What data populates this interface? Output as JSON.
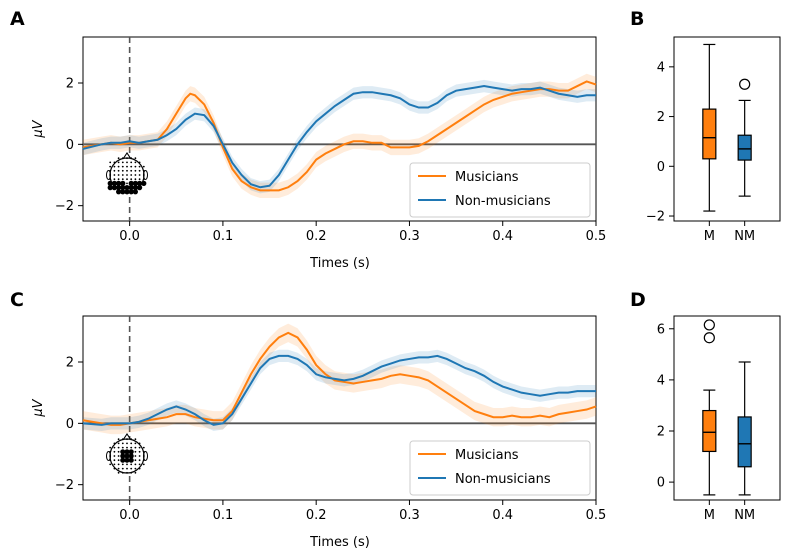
{
  "colors": {
    "musicians": "#ff7f0e",
    "non_musicians": "#1f77b4",
    "zero_line": "#555555",
    "onset_line": "#555555"
  },
  "chart_data": [
    {
      "panel": "A",
      "type": "line",
      "xlabel": "Times (s)",
      "ylabel": "μV",
      "xlim": [
        -0.05,
        0.5
      ],
      "ylim": [
        -2.5,
        3.5
      ],
      "xticks": [
        "0.0",
        "0.1",
        "0.2",
        "0.3",
        "0.4",
        "0.5"
      ],
      "yticks": [
        "−2",
        "0",
        "2"
      ],
      "legend": "bottom-right",
      "onset_marker": 0.0,
      "series": [
        {
          "name": "Musicians",
          "color": "#ff7f0e",
          "band": 0.25,
          "x": [
            -0.05,
            -0.03,
            -0.02,
            -0.01,
            0.0,
            0.01,
            0.02,
            0.03,
            0.04,
            0.05,
            0.06,
            0.065,
            0.07,
            0.08,
            0.09,
            0.1,
            0.11,
            0.12,
            0.13,
            0.14,
            0.15,
            0.16,
            0.17,
            0.18,
            0.19,
            0.2,
            0.21,
            0.22,
            0.23,
            0.24,
            0.25,
            0.26,
            0.27,
            0.28,
            0.29,
            0.3,
            0.31,
            0.32,
            0.33,
            0.34,
            0.35,
            0.36,
            0.37,
            0.38,
            0.39,
            0.4,
            0.41,
            0.42,
            0.43,
            0.44,
            0.45,
            0.46,
            0.47,
            0.48,
            0.49,
            0.5
          ],
          "y": [
            -0.1,
            0.0,
            0.05,
            0.0,
            0.05,
            0.05,
            0.1,
            0.15,
            0.5,
            1.0,
            1.5,
            1.65,
            1.6,
            1.3,
            0.7,
            -0.1,
            -0.8,
            -1.2,
            -1.4,
            -1.5,
            -1.5,
            -1.5,
            -1.4,
            -1.2,
            -0.9,
            -0.5,
            -0.3,
            -0.15,
            0.0,
            0.1,
            0.1,
            0.05,
            0.05,
            -0.1,
            -0.1,
            -0.1,
            -0.05,
            0.1,
            0.3,
            0.5,
            0.7,
            0.9,
            1.1,
            1.3,
            1.45,
            1.55,
            1.65,
            1.7,
            1.75,
            1.8,
            1.8,
            1.75,
            1.75,
            1.9,
            2.05,
            1.95
          ]
        },
        {
          "name": "Non-musicians",
          "color": "#1f77b4",
          "band": 0.2,
          "x": [
            -0.05,
            -0.03,
            -0.02,
            -0.01,
            0.0,
            0.01,
            0.02,
            0.03,
            0.04,
            0.05,
            0.06,
            0.07,
            0.08,
            0.09,
            0.1,
            0.11,
            0.12,
            0.13,
            0.14,
            0.15,
            0.16,
            0.17,
            0.18,
            0.19,
            0.2,
            0.21,
            0.22,
            0.23,
            0.24,
            0.25,
            0.26,
            0.27,
            0.28,
            0.29,
            0.3,
            0.31,
            0.32,
            0.33,
            0.34,
            0.35,
            0.36,
            0.37,
            0.38,
            0.39,
            0.4,
            0.41,
            0.42,
            0.43,
            0.44,
            0.45,
            0.46,
            0.47,
            0.48,
            0.49,
            0.5
          ],
          "y": [
            -0.15,
            0.0,
            0.05,
            0.05,
            0.1,
            0.05,
            0.1,
            0.15,
            0.3,
            0.5,
            0.8,
            1.0,
            0.95,
            0.6,
            0.0,
            -0.6,
            -1.0,
            -1.3,
            -1.4,
            -1.35,
            -1.0,
            -0.5,
            0.0,
            0.4,
            0.75,
            1.0,
            1.25,
            1.45,
            1.65,
            1.7,
            1.7,
            1.65,
            1.6,
            1.5,
            1.3,
            1.2,
            1.2,
            1.35,
            1.6,
            1.75,
            1.8,
            1.85,
            1.9,
            1.85,
            1.8,
            1.75,
            1.8,
            1.8,
            1.85,
            1.75,
            1.65,
            1.6,
            1.55,
            1.6,
            1.6
          ]
        }
      ],
      "inset": "electrode map"
    },
    {
      "panel": "B",
      "type": "box",
      "categories": [
        "M",
        "NM"
      ],
      "ylim": [
        -2.2,
        5.2
      ],
      "yticks": [
        "−2",
        "0",
        "2",
        "4"
      ],
      "boxes": [
        {
          "label": "M",
          "color": "#ff7f0e",
          "whisker_low": -1.8,
          "q1": 0.3,
          "median": 1.15,
          "q3": 2.3,
          "whisker_high": 4.9,
          "outliers": []
        },
        {
          "label": "NM",
          "color": "#1f77b4",
          "whisker_low": -1.2,
          "q1": 0.25,
          "median": 0.7,
          "q3": 1.25,
          "whisker_high": 2.65,
          "outliers": [
            3.3
          ]
        }
      ]
    },
    {
      "panel": "C",
      "type": "line",
      "xlabel": "Times (s)",
      "ylabel": "μV",
      "xlim": [
        -0.05,
        0.5
      ],
      "ylim": [
        -2.5,
        3.5
      ],
      "xticks": [
        "0.0",
        "0.1",
        "0.2",
        "0.3",
        "0.4",
        "0.5"
      ],
      "yticks": [
        "−2",
        "0",
        "2"
      ],
      "legend": "bottom-right",
      "onset_marker": 0.0,
      "series": [
        {
          "name": "Musicians",
          "color": "#ff7f0e",
          "band": 0.3,
          "x": [
            -0.05,
            -0.03,
            -0.02,
            -0.01,
            0.0,
            0.01,
            0.02,
            0.03,
            0.04,
            0.05,
            0.06,
            0.07,
            0.08,
            0.09,
            0.1,
            0.11,
            0.12,
            0.13,
            0.14,
            0.15,
            0.16,
            0.17,
            0.18,
            0.19,
            0.2,
            0.21,
            0.22,
            0.23,
            0.24,
            0.25,
            0.26,
            0.27,
            0.28,
            0.29,
            0.3,
            0.31,
            0.32,
            0.33,
            0.34,
            0.35,
            0.36,
            0.37,
            0.38,
            0.39,
            0.4,
            0.41,
            0.42,
            0.43,
            0.44,
            0.45,
            0.46,
            0.47,
            0.48,
            0.49,
            0.5
          ],
          "y": [
            0.1,
            0.0,
            -0.05,
            -0.05,
            0.0,
            0.05,
            0.1,
            0.15,
            0.2,
            0.3,
            0.3,
            0.2,
            0.15,
            0.1,
            0.1,
            0.4,
            1.0,
            1.6,
            2.1,
            2.5,
            2.8,
            2.95,
            2.8,
            2.4,
            1.9,
            1.6,
            1.4,
            1.35,
            1.3,
            1.35,
            1.4,
            1.45,
            1.55,
            1.6,
            1.55,
            1.5,
            1.4,
            1.2,
            1.0,
            0.8,
            0.6,
            0.4,
            0.3,
            0.2,
            0.2,
            0.25,
            0.2,
            0.2,
            0.25,
            0.2,
            0.3,
            0.35,
            0.4,
            0.45,
            0.55
          ]
        },
        {
          "name": "Non-musicians",
          "color": "#1f77b4",
          "band": 0.2,
          "x": [
            -0.05,
            -0.03,
            -0.02,
            -0.01,
            0.0,
            0.01,
            0.02,
            0.03,
            0.04,
            0.05,
            0.06,
            0.07,
            0.08,
            0.09,
            0.1,
            0.11,
            0.12,
            0.13,
            0.14,
            0.15,
            0.16,
            0.17,
            0.18,
            0.19,
            0.2,
            0.21,
            0.22,
            0.23,
            0.24,
            0.25,
            0.26,
            0.27,
            0.28,
            0.29,
            0.3,
            0.31,
            0.32,
            0.33,
            0.34,
            0.35,
            0.36,
            0.37,
            0.38,
            0.39,
            0.4,
            0.41,
            0.42,
            0.43,
            0.44,
            0.45,
            0.46,
            0.47,
            0.48,
            0.49,
            0.5
          ],
          "y": [
            0.0,
            -0.05,
            0.0,
            0.0,
            0.0,
            0.05,
            0.15,
            0.3,
            0.45,
            0.55,
            0.45,
            0.3,
            0.1,
            -0.05,
            0.0,
            0.3,
            0.8,
            1.3,
            1.8,
            2.1,
            2.2,
            2.2,
            2.1,
            1.9,
            1.6,
            1.5,
            1.45,
            1.4,
            1.45,
            1.55,
            1.7,
            1.85,
            1.95,
            2.05,
            2.1,
            2.15,
            2.15,
            2.2,
            2.1,
            1.95,
            1.8,
            1.7,
            1.55,
            1.35,
            1.2,
            1.1,
            1.0,
            0.95,
            0.9,
            0.95,
            1.0,
            1.0,
            1.05,
            1.05,
            1.05
          ]
        }
      ],
      "inset": "electrode map"
    },
    {
      "panel": "D",
      "type": "box",
      "categories": [
        "M",
        "NM"
      ],
      "ylim": [
        -0.7,
        6.5
      ],
      "yticks": [
        "0",
        "2",
        "4",
        "6"
      ],
      "boxes": [
        {
          "label": "M",
          "color": "#ff7f0e",
          "whisker_low": -0.5,
          "q1": 1.2,
          "median": 1.95,
          "q3": 2.8,
          "whisker_high": 3.6,
          "outliers": [
            5.65,
            6.15
          ]
        },
        {
          "label": "NM",
          "color": "#1f77b4",
          "whisker_low": -0.5,
          "q1": 0.6,
          "median": 1.5,
          "q3": 2.55,
          "whisker_high": 4.7,
          "outliers": []
        }
      ]
    }
  ]
}
